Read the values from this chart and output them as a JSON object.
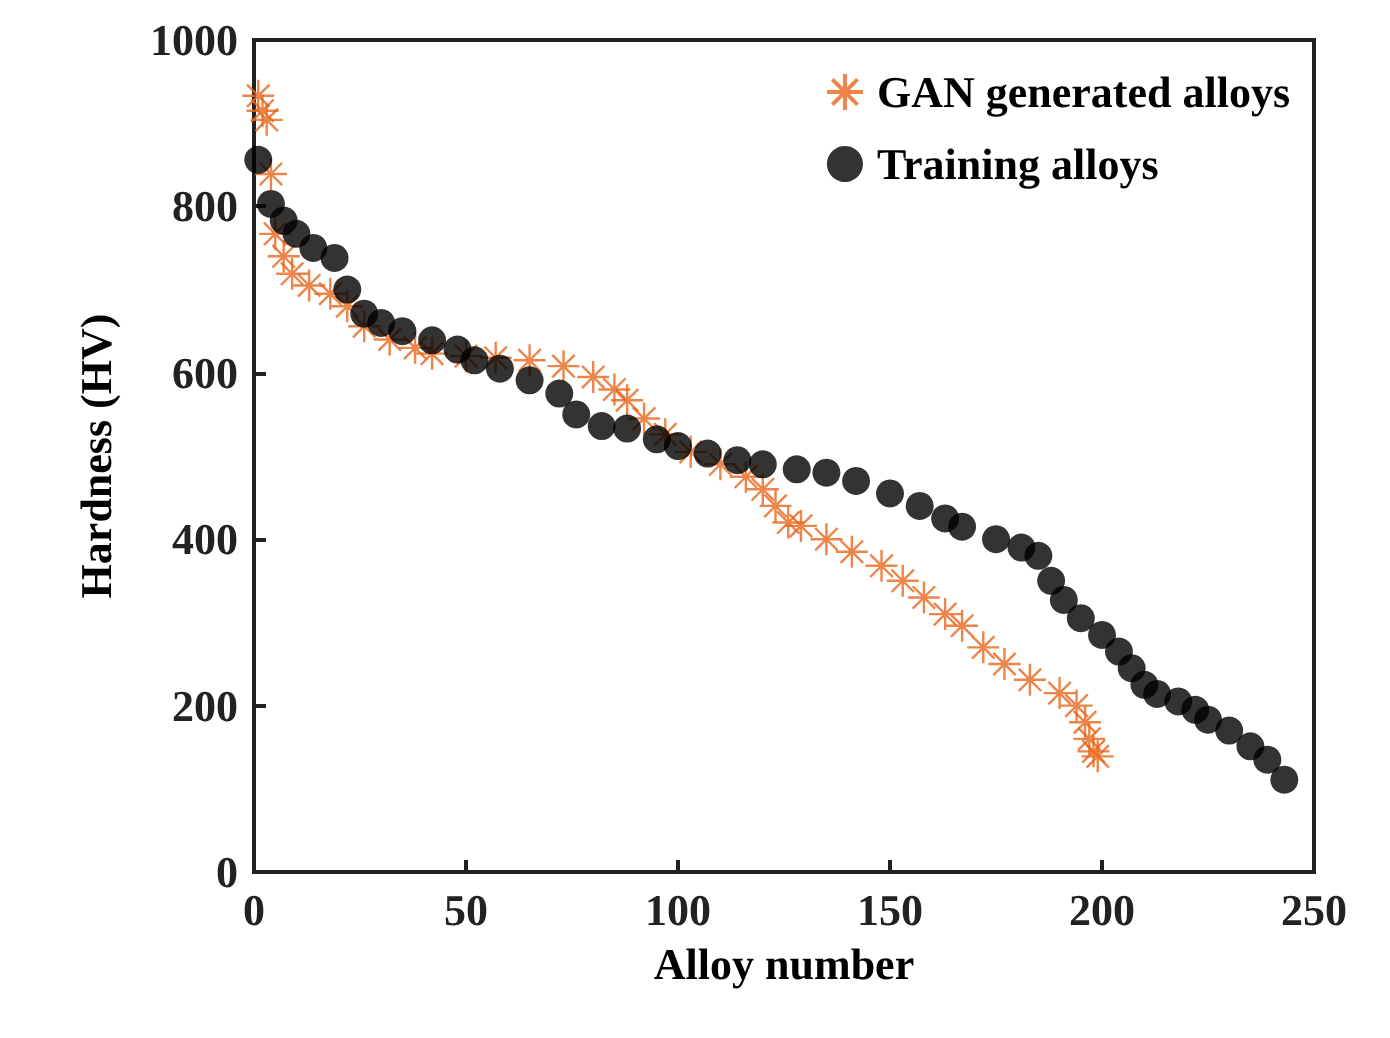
{
  "chart_data": {
    "type": "scatter",
    "xlabel": "Alloy number",
    "ylabel": "Hardness (HV)",
    "xlim": [
      0,
      250
    ],
    "xticks": [
      0,
      50,
      100,
      150,
      200,
      250
    ],
    "ylim": [
      0,
      1000
    ],
    "yticks": [
      0,
      200,
      400,
      600,
      800,
      1000
    ],
    "grid": false,
    "legend": "top right",
    "series": [
      {
        "name": "GAN generated alloys",
        "color": "#e8651c",
        "marker": "cross",
        "x": [
          1,
          2,
          3,
          4,
          5,
          7,
          9,
          13,
          18,
          22,
          26,
          32,
          38,
          42,
          50,
          57,
          65,
          73,
          80,
          85,
          88,
          92,
          97,
          103,
          110,
          116,
          120,
          123,
          126,
          129,
          135,
          141,
          148,
          153,
          158,
          163,
          167,
          172,
          177,
          183,
          190,
          194,
          196,
          197,
          198,
          199
        ],
        "values": [
          933,
          915,
          904,
          839,
          767,
          740,
          719,
          705,
          695,
          680,
          656,
          640,
          630,
          623,
          620,
          618,
          615,
          608,
          595,
          580,
          567,
          545,
          526,
          505,
          490,
          475,
          460,
          440,
          420,
          416,
          400,
          385,
          368,
          350,
          330,
          310,
          296,
          270,
          250,
          231,
          215,
          200,
          180,
          160,
          145,
          139
        ]
      },
      {
        "name": "Training alloys",
        "color": "#000000",
        "marker": "circle",
        "x": [
          1,
          4,
          7,
          10,
          14,
          19,
          22,
          26,
          30,
          35,
          42,
          48,
          52,
          58,
          65,
          72,
          76,
          82,
          88,
          95,
          100,
          107,
          114,
          120,
          128,
          135,
          142,
          150,
          157,
          163,
          167,
          175,
          181,
          185,
          188,
          191,
          195,
          200,
          204,
          207,
          210,
          213,
          218,
          222,
          225,
          230,
          235,
          239,
          243
        ],
        "values": [
          856,
          803,
          783,
          767,
          750,
          738,
          700,
          671,
          660,
          650,
          639,
          628,
          615,
          605,
          591,
          575,
          550,
          536,
          533,
          520,
          512,
          503,
          495,
          490,
          484,
          480,
          470,
          455,
          440,
          425,
          415,
          400,
          390,
          380,
          350,
          327,
          305,
          285,
          265,
          245,
          225,
          214,
          205,
          195,
          183,
          170,
          151,
          135,
          111
        ]
      }
    ]
  }
}
